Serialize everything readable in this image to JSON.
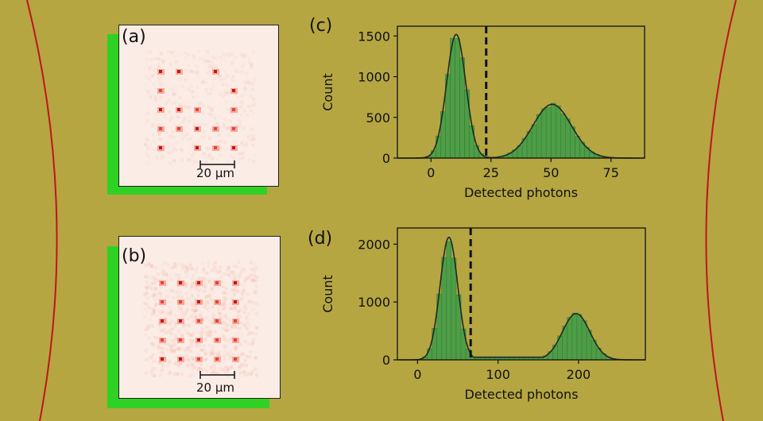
{
  "figure": {
    "background_color": "#b5a642",
    "accent_green": "#2ed124",
    "arc_color": "#c0141c"
  },
  "panels": {
    "a": {
      "label": "(a)",
      "scale_bar": "20 μm"
    },
    "b": {
      "label": "(b)",
      "scale_bar": "20 μm"
    }
  },
  "chart_data": [
    {
      "type": "bar",
      "panel_label": "(c)",
      "title": "",
      "xlabel": "Detected photons",
      "ylabel": "Count",
      "xlim": [
        -14,
        89
      ],
      "ylim": [
        0,
        1620
      ],
      "xticks": [
        0,
        25,
        50,
        75
      ],
      "yticks": [
        0,
        500,
        1000,
        1500
      ],
      "threshold": 23,
      "bar_color": "#4d9e46",
      "bin_width": 2,
      "peaks": [
        {
          "mean": 10.5,
          "sigma": 4.0,
          "height": 1520
        },
        {
          "mean": 50.5,
          "sigma": 8.0,
          "height": 660
        }
      ],
      "fit_line": "double Gaussian"
    },
    {
      "type": "bar",
      "panel_label": "(d)",
      "title": "",
      "xlabel": "Detected photons",
      "ylabel": "Count",
      "xlim": [
        -25,
        283
      ],
      "ylim": [
        0,
        2280
      ],
      "xticks": [
        0,
        100,
        200
      ],
      "yticks": [
        0,
        1000,
        2000
      ],
      "threshold": 66,
      "bar_color": "#4d9e46",
      "bin_width": 6,
      "peaks": [
        {
          "mean": 39,
          "sigma": 11,
          "height": 2120
        },
        {
          "mean": 197,
          "sigma": 17,
          "height": 800
        }
      ],
      "plateau": {
        "from": 55,
        "to": 175,
        "value": 45
      },
      "fit_line": "double Gaussian"
    }
  ]
}
